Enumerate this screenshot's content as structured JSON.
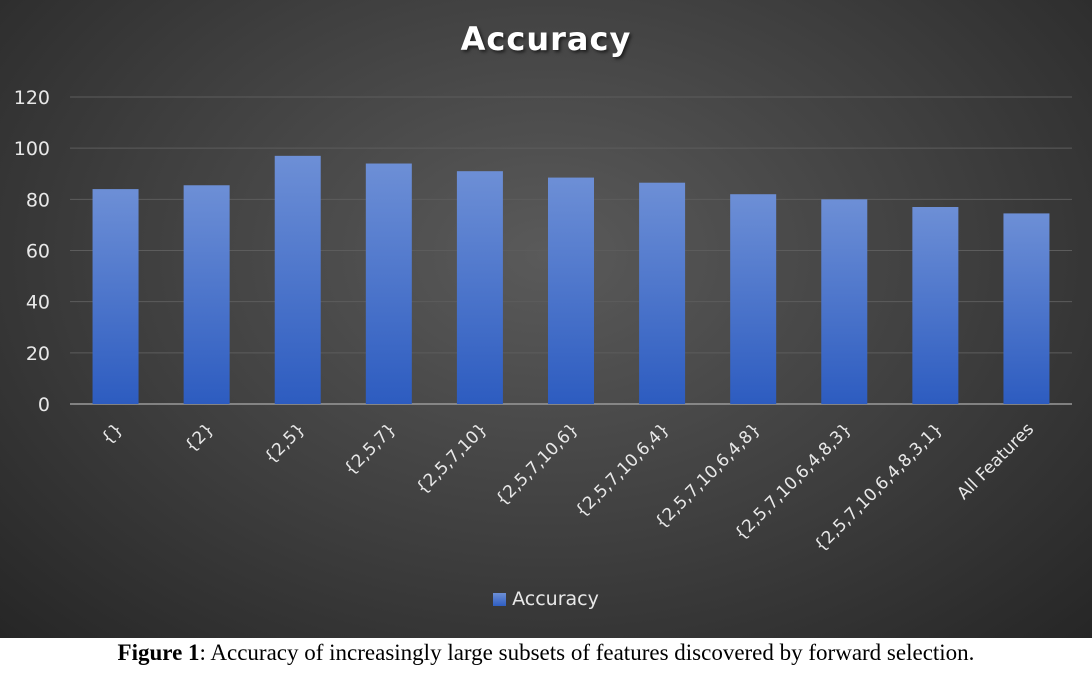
{
  "chart_data": {
    "type": "bar",
    "title": "Accuracy",
    "categories": [
      "{}",
      "{2}",
      "{2,5}",
      "{2,5,7}",
      "{2,5,7,10}",
      "{2,5,7,10,6}",
      "{2,5,7,10,6,4}",
      "{2,5,7,10,6,4,8}",
      "{2,5,7,10,6,4,8,3}",
      "{2,5,7,10,6,4,8,3,1}",
      "All Features"
    ],
    "series": [
      {
        "name": "Accuracy",
        "values": [
          84,
          85.5,
          97,
          94,
          91,
          88.5,
          86.5,
          82,
          80,
          77,
          74.5
        ]
      }
    ],
    "ylim": [
      0,
      120
    ],
    "yticks": [
      0,
      20,
      40,
      60,
      80,
      100,
      120
    ],
    "grid": true,
    "legend_position": "bottom",
    "bar_color": "#4472C4"
  },
  "caption": {
    "prefix": "Figure 1",
    "text": ": Accuracy of increasingly large subsets of features discovered by forward selection."
  }
}
